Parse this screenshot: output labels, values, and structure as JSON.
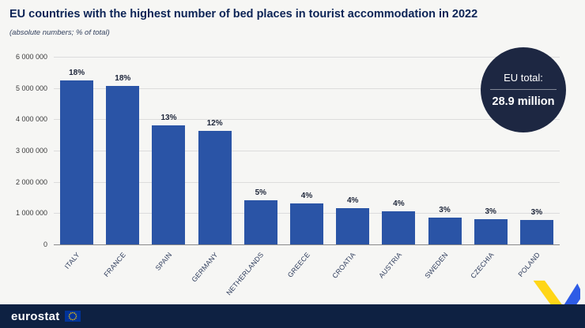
{
  "header": {
    "title": "EU countries with the highest number of bed places in tourist accommodation in 2022",
    "subtitle": "(absolute numbers; % of total)"
  },
  "badge": {
    "label": "EU total:",
    "value": "28.9 million"
  },
  "footer": {
    "logo": "eurostat"
  },
  "icons": {
    "eu_flag": "eu-flag-icon",
    "ribbon": "ribbon-decoration"
  },
  "colors": {
    "bar": "#2a54a6",
    "title": "#0c2456",
    "badge_bg": "#1d2742",
    "footer_bg": "#0e2142",
    "ribbon_yellow": "#ffd617",
    "ribbon_blue": "#2e5ce6",
    "gridline": "#dcdcdc"
  },
  "chart_data": {
    "type": "bar",
    "title": "EU countries with the highest number of bed places in tourist accommodation in 2022",
    "subtitle": "(absolute numbers; % of total)",
    "categories": [
      "ITALY",
      "FRANCE",
      "SPAIN",
      "GERMANY",
      "NETHERLANDS",
      "GREECE",
      "CROATIA",
      "AUSTRIA",
      "SWEDEN",
      "CZECHIA",
      "POLAND"
    ],
    "values": [
      5250000,
      5070000,
      3800000,
      3620000,
      1420000,
      1300000,
      1150000,
      1070000,
      850000,
      800000,
      790000
    ],
    "percent_labels": [
      "18%",
      "18%",
      "13%",
      "12%",
      "5%",
      "4%",
      "4%",
      "4%",
      "3%",
      "3%",
      "3%"
    ],
    "xlabel": "",
    "ylabel": "",
    "ylim": [
      0,
      6000000
    ],
    "ytick_step": 1000000,
    "grid": true,
    "legend": false,
    "bar_color": "#2a54a6",
    "annotation": "EU total: 28.9 million"
  }
}
